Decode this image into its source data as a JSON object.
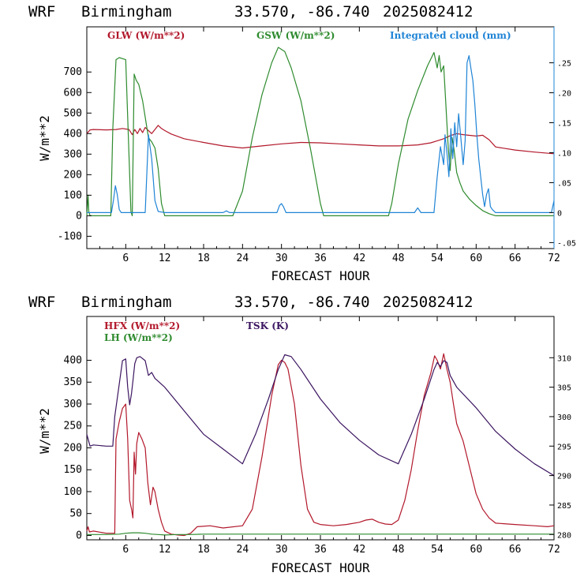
{
  "colors": {
    "red": "#b2182b",
    "green": "#2e8b2e",
    "blue": "#1f84d6",
    "purple": "#3b1560",
    "axis": "#000000"
  },
  "chart_data": [
    {
      "type": "line",
      "header": {
        "model": "WRF",
        "location": "Birmingham",
        "coords": "33.570, -86.740",
        "run": "2025082412"
      },
      "xlabel": "FORECAST HOUR",
      "ylabel": "W/m**2",
      "xlim": [
        0,
        72
      ],
      "ylim": [
        -160,
        920
      ],
      "y2lim": [
        -0.06,
        0.31
      ],
      "xticks": [
        6,
        12,
        18,
        24,
        30,
        36,
        42,
        48,
        54,
        60,
        66,
        72
      ],
      "yticks": [
        -100,
        0,
        100,
        200,
        300,
        400,
        500,
        600,
        700
      ],
      "y2ticks": [
        {
          "v": -0.05,
          "label": "-.05"
        },
        {
          "v": 0,
          "label": "0"
        },
        {
          "v": 0.05,
          "label": ".05"
        },
        {
          "v": 0.1,
          "label": ".10"
        },
        {
          "v": 0.15,
          "label": ".15"
        },
        {
          "v": 0.2,
          "label": ".20"
        },
        {
          "v": 0.25,
          "label": ".25"
        }
      ],
      "legend": [
        {
          "label": "GLW (W/m**2)",
          "color": "#b2182b"
        },
        {
          "label": "GSW (W/m**2)",
          "color": "#2e8b2e"
        },
        {
          "label": "Integrated cloud (mm)",
          "color": "#1f84d6"
        }
      ],
      "series": [
        {
          "name": "GLW (W/m**2)",
          "color": "#b2182b",
          "axis": "left",
          "x": [
            0,
            0.5,
            1,
            3,
            4.5,
            5.5,
            6.5,
            7,
            7.4,
            7.8,
            8.2,
            8.6,
            9,
            9.5,
            10,
            10.5,
            11,
            11.5,
            12,
            13,
            15,
            18,
            21,
            24,
            27,
            30,
            33,
            36,
            39,
            42,
            45,
            48,
            51,
            53,
            54,
            55,
            56,
            57,
            58,
            60,
            61,
            62,
            63,
            66,
            69,
            72
          ],
          "y": [
            400,
            418,
            420,
            418,
            420,
            425,
            420,
            395,
            420,
            400,
            425,
            405,
            430,
            415,
            400,
            420,
            440,
            425,
            415,
            398,
            375,
            357,
            340,
            330,
            340,
            350,
            357,
            355,
            350,
            345,
            340,
            340,
            345,
            355,
            365,
            375,
            390,
            400,
            395,
            388,
            392,
            370,
            335,
            320,
            310,
            302
          ]
        },
        {
          "name": "GSW (W/m**2)",
          "color": "#2e8b2e",
          "axis": "left",
          "x": [
            0,
            0.2,
            0.3,
            0.5,
            1,
            3.7,
            4,
            4.5,
            5,
            5.5,
            6,
            6.5,
            6.8,
            7,
            7.3,
            7.6,
            8,
            8.3,
            8.6,
            9,
            9.5,
            10,
            10.5,
            11,
            11.5,
            12,
            22.5,
            24,
            25.5,
            27,
            28.5,
            29.5,
            30.5,
            31.5,
            33,
            34.5,
            36,
            36.5,
            46.5,
            47,
            48,
            49.5,
            51,
            52.5,
            53.5,
            54,
            54.3,
            54.6,
            55,
            55.3,
            55.7,
            56,
            56.3,
            56.6,
            57,
            57.5,
            58,
            59,
            60,
            61,
            62,
            63,
            72
          ],
          "y": [
            0,
            100,
            20,
            0,
            0,
            0,
            420,
            760,
            770,
            765,
            760,
            300,
            20,
            0,
            690,
            660,
            640,
            600,
            560,
            480,
            380,
            360,
            330,
            230,
            60,
            0,
            0,
            120,
            380,
            590,
            745,
            820,
            800,
            720,
            560,
            320,
            60,
            0,
            0,
            60,
            250,
            470,
            610,
            730,
            795,
            720,
            780,
            700,
            730,
            560,
            330,
            220,
            380,
            320,
            210,
            160,
            120,
            80,
            50,
            25,
            10,
            0,
            0
          ]
        },
        {
          "name": "Integrated cloud (mm)",
          "color": "#1f84d6",
          "axis": "right",
          "x": [
            0,
            3.8,
            4.1,
            4.4,
            4.7,
            5,
            5.3,
            5.6,
            9,
            9.5,
            10,
            10.5,
            11,
            11.5,
            12,
            21,
            21.5,
            22,
            29.3,
            29.7,
            30,
            30.3,
            30.7,
            50.5,
            51,
            51.5,
            53.5,
            54,
            54.5,
            55,
            55.2,
            55.5,
            55.8,
            56.1,
            56.4,
            56.7,
            57,
            57.3,
            57.6,
            58,
            58.3,
            58.6,
            58.9,
            59.2,
            59.5,
            59.8,
            60.1,
            60.4,
            60.7,
            61,
            61.3,
            61.6,
            61.9,
            62.2,
            62.5,
            63,
            71.6,
            72
          ],
          "y": [
            0,
            0,
            0.02,
            0.045,
            0.03,
            0.005,
            0,
            0,
            0,
            0.13,
            0.09,
            0.02,
            0.002,
            0.001,
            0,
            0,
            0.003,
            0,
            0,
            0.012,
            0.015,
            0.01,
            0,
            0,
            0.008,
            0,
            0,
            0.06,
            0.11,
            0.08,
            0.13,
            0.1,
            0.06,
            0.14,
            0.09,
            0.15,
            0.11,
            0.165,
            0.13,
            0.08,
            0.12,
            0.25,
            0.262,
            0.24,
            0.22,
            0.18,
            0.13,
            0.09,
            0.06,
            0.03,
            0.01,
            0.03,
            0.04,
            0.01,
            0.005,
            0,
            0,
            0.02
          ]
        }
      ]
    },
    {
      "type": "line",
      "header": {
        "model": "WRF",
        "location": "Birmingham",
        "coords": "33.570, -86.740",
        "run": "2025082412"
      },
      "xlabel": "FORECAST HOUR",
      "ylabel": "W/m**2",
      "xlim": [
        0,
        72
      ],
      "ylim": [
        -10,
        500
      ],
      "y2lim": [
        279.1,
        317
      ],
      "xticks": [
        6,
        12,
        18,
        24,
        30,
        36,
        42,
        48,
        54,
        60,
        66,
        72
      ],
      "yticks": [
        0,
        50,
        100,
        150,
        200,
        250,
        300,
        350,
        400
      ],
      "y2ticks": [
        {
          "v": 280,
          "label": "280"
        },
        {
          "v": 285,
          "label": "285"
        },
        {
          "v": 290,
          "label": "290"
        },
        {
          "v": 295,
          "label": "295"
        },
        {
          "v": 300,
          "label": "300"
        },
        {
          "v": 305,
          "label": "305"
        },
        {
          "v": 310,
          "label": "310"
        }
      ],
      "legend": [
        {
          "label": "HFX (W/m**2)",
          "color": "#b2182b"
        },
        {
          "label": "LH  (W/m**2)",
          "color": "#2e8b2e"
        },
        {
          "label": "TSK (K)",
          "color": "#3b1560"
        }
      ],
      "series": [
        {
          "name": "HFX (W/m**2)",
          "color": "#b2182b",
          "axis": "left",
          "x": [
            0,
            0.2,
            0.4,
            1,
            3,
            4.3,
            4.5,
            5,
            5.5,
            6,
            6.3,
            6.6,
            6.9,
            7.1,
            7.3,
            7.5,
            7.7,
            8,
            8.5,
            9,
            9.4,
            9.8,
            10.2,
            10.5,
            11,
            11.5,
            12,
            13,
            14,
            15,
            16,
            17,
            19,
            21,
            24,
            25.5,
            27,
            28.5,
            29.5,
            30,
            30.5,
            31,
            32,
            33,
            34,
            35,
            36,
            38,
            40,
            42,
            43,
            44,
            45,
            46,
            47,
            48,
            49,
            50,
            51,
            52,
            53,
            53.6,
            54,
            54.5,
            55,
            55.5,
            56,
            56.5,
            57,
            58,
            59,
            60,
            61,
            62,
            63,
            66,
            69,
            71,
            72
          ],
          "y": [
            10,
            20,
            8,
            10,
            5,
            5,
            220,
            260,
            290,
            300,
            220,
            80,
            60,
            40,
            190,
            140,
            210,
            235,
            220,
            200,
            120,
            70,
            110,
            100,
            60,
            30,
            10,
            3,
            1,
            0,
            5,
            20,
            22,
            17,
            22,
            60,
            180,
            320,
            390,
            400,
            395,
            380,
            300,
            160,
            60,
            30,
            25,
            22,
            25,
            30,
            35,
            37,
            30,
            26,
            25,
            35,
            80,
            150,
            240,
            320,
            370,
            410,
            400,
            380,
            415,
            380,
            350,
            300,
            255,
            215,
            155,
            95,
            60,
            40,
            28,
            25,
            22,
            20,
            22
          ]
        },
        {
          "name": "LH  (W/m**2)",
          "color": "#2e8b2e",
          "axis": "left",
          "x": [
            0,
            3,
            5,
            6,
            7,
            8,
            9,
            10,
            11,
            12,
            14,
            16,
            18,
            72
          ],
          "y": [
            2,
            2,
            3,
            5,
            6,
            6,
            5,
            3,
            2,
            1,
            2,
            2,
            3,
            3
          ]
        },
        {
          "name": "TSK (K)",
          "color": "#3b1560",
          "axis": "right",
          "x": [
            0,
            0.5,
            1,
            3,
            4,
            4.3,
            5.5,
            6,
            6.3,
            6.6,
            6.9,
            7.1,
            7.4,
            7.7,
            8.2,
            9,
            9.5,
            10,
            10.5,
            11,
            12,
            15,
            18,
            21,
            24,
            26,
            28,
            29.5,
            30.5,
            31.5,
            33,
            36,
            39,
            42,
            45,
            48,
            50,
            52,
            53.5,
            54,
            54.5,
            55,
            55.5,
            56,
            57,
            60,
            63,
            66,
            69,
            72
          ],
          "y": [
            297,
            295,
            295.2,
            295,
            295,
            300,
            309.5,
            309.8,
            305,
            302,
            304,
            306,
            309,
            310,
            310.2,
            309.5,
            307,
            307.5,
            306.5,
            306,
            305,
            301,
            297,
            294.5,
            292,
            297,
            303,
            308,
            310.5,
            310.2,
            308,
            303,
            299,
            296,
            293.5,
            292,
            297,
            303,
            308,
            309.2,
            308.5,
            309.5,
            309.2,
            307,
            305,
            301.5,
            297.5,
            294.5,
            292,
            290
          ]
        }
      ]
    }
  ]
}
